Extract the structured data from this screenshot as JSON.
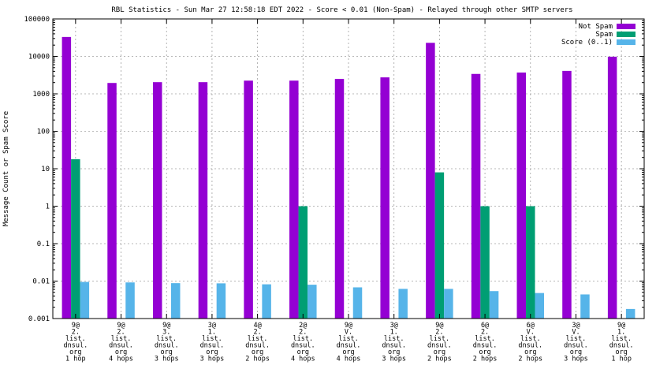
{
  "chart_data": {
    "type": "bar",
    "title": "RBL Statistics - Sun Mar 27 12:58:18 EDT 2022 - Score < 0.01 (Non-Spam) - Relayed through other SMTP servers",
    "ylabel": "Message Count or Spam Score",
    "xlabel": "",
    "yscale": "log",
    "ylim": [
      0.001,
      100000
    ],
    "yticks": [
      "0.001",
      "0.01",
      "0.1",
      "1",
      "10",
      "100",
      "1000",
      "10000",
      "100000"
    ],
    "grid": true,
    "legend_position": "top-right",
    "categories": [
      [
        "9@",
        "2.",
        "list.",
        "dnsul.",
        "org",
        "1 hop"
      ],
      [
        "9@",
        "2.",
        "list.",
        "dnsul.",
        "org",
        "4 hops"
      ],
      [
        "9@",
        "3.",
        "list.",
        "dnsul.",
        "org",
        "3 hops"
      ],
      [
        "3@",
        "1.",
        "list.",
        "dnsul.",
        "org",
        "3 hops"
      ],
      [
        "4@",
        "2.",
        "list.",
        "dnsul.",
        "org",
        "2 hops"
      ],
      [
        "2@",
        "2.",
        "list.",
        "dnsul.",
        "org",
        "4 hops"
      ],
      [
        "9@",
        "V.",
        "list.",
        "dnsul.",
        "org",
        "4 hops"
      ],
      [
        "3@",
        "1.",
        "list.",
        "dnsul.",
        "org",
        "3 hops"
      ],
      [
        "9@",
        "2.",
        "list.",
        "dnsul.",
        "org",
        "2 hops"
      ],
      [
        "6@",
        "2.",
        "list.",
        "dnsul.",
        "org",
        "2 hops"
      ],
      [
        "6@",
        "V.",
        "list.",
        "dnsul.",
        "org",
        "2 hops"
      ],
      [
        "3@",
        "V.",
        "list.",
        "dnsul.",
        "org",
        "3 hops"
      ],
      [
        "9@",
        "1.",
        "list.",
        "dnsul.",
        "org",
        "1 hop"
      ]
    ],
    "series": [
      {
        "name": "Not Spam",
        "color": "#9400d3",
        "values": [
          33000,
          1950,
          2050,
          2050,
          2250,
          2250,
          2500,
          2750,
          23000,
          3400,
          3700,
          4100,
          9800
        ]
      },
      {
        "name": "Spam",
        "color": "#009e73",
        "values": [
          18,
          null,
          null,
          null,
          null,
          1,
          null,
          null,
          8,
          1,
          1,
          null,
          null
        ]
      },
      {
        "name": "Score (0..1)",
        "color": "#56b4e9",
        "values": [
          0.0095,
          0.0092,
          0.0088,
          0.0087,
          0.0082,
          0.008,
          0.0068,
          0.0062,
          0.0062,
          0.0054,
          0.0048,
          0.0044,
          0.0018
        ]
      }
    ]
  }
}
